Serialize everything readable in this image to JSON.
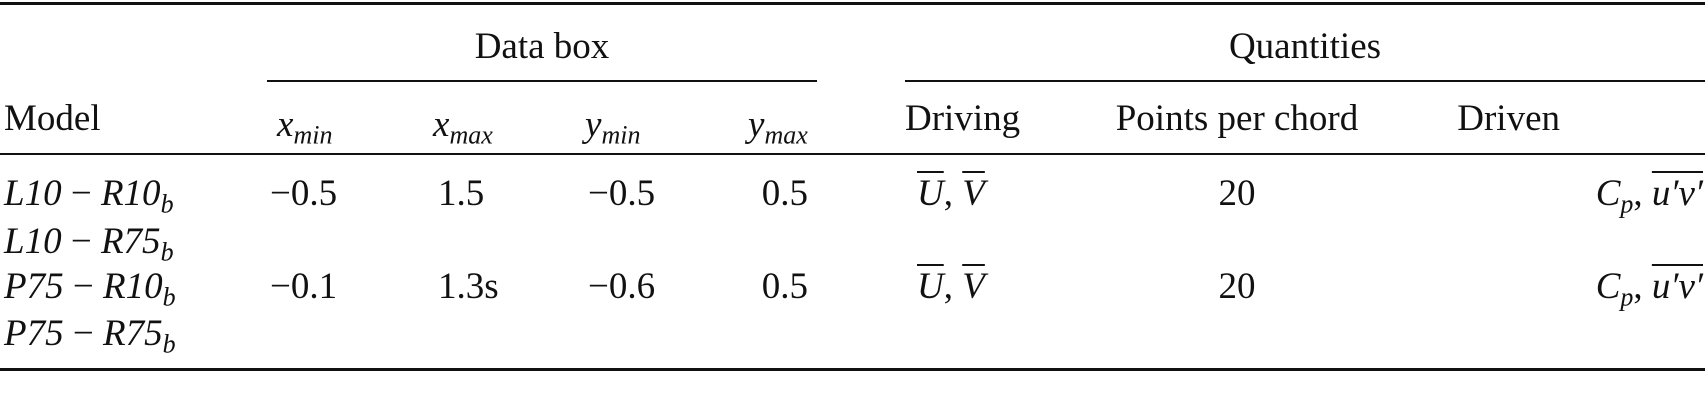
{
  "table": {
    "group_headers": {
      "data_box": "Data box",
      "quantities": "Quantities"
    },
    "columns": {
      "model": "Model",
      "xmin": {
        "var": "x",
        "sub": "min"
      },
      "xmax": {
        "var": "x",
        "sub": "max"
      },
      "ymin": {
        "var": "y",
        "sub": "min"
      },
      "ymax": {
        "var": "y",
        "sub": "max"
      },
      "driving": "Driving",
      "points_per_chord": "Points per chord",
      "driven": "Driven"
    },
    "models": [
      {
        "a": "L10",
        "op": " − ",
        "b": "R10",
        "sub": "b"
      },
      {
        "a": "L10",
        "op": " − ",
        "b": "R75",
        "sub": "b"
      },
      {
        "a": "P75",
        "op": " − ",
        "b": "R10",
        "sub": "b"
      },
      {
        "a": "P75",
        "op": " − ",
        "b": "R75",
        "sub": "b"
      }
    ],
    "groups": [
      {
        "xmin": "−0.5",
        "xmax": "1.5",
        "ymin": "−0.5",
        "ymax": "0.5",
        "driving": {
          "u": "U",
          "sep": ", ",
          "v": "V"
        },
        "points": "20",
        "driven": {
          "c": "C",
          "csub": "p",
          "sep": ", ",
          "uv": "u′v′"
        }
      },
      {
        "xmin": "−0.1",
        "xmax": "1.3s",
        "ymin": "−0.6",
        "ymax": "0.5",
        "driving": {
          "u": "U",
          "sep": ", ",
          "v": "V"
        },
        "points": "20",
        "driven": {
          "c": "C",
          "csub": "p",
          "sep": ", ",
          "uv": "u′v′"
        }
      }
    ]
  }
}
